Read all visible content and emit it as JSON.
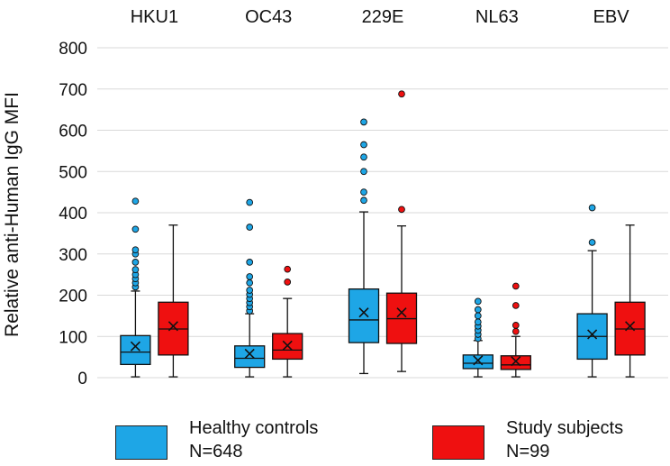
{
  "chart_data": {
    "type": "box",
    "title": "",
    "xlabel": "",
    "ylabel": "Relative anti-Human IgG MFI",
    "ylim": [
      0,
      800
    ],
    "yticks": [
      0,
      100,
      200,
      300,
      400,
      500,
      600,
      700,
      800
    ],
    "grid": true,
    "categories": [
      "HKU1",
      "OC43",
      "229E",
      "NL63",
      "EBV"
    ],
    "series": [
      {
        "name": "Healthy controls",
        "n_label": "N=648",
        "color": "#1ea6e6",
        "boxes": [
          {
            "min": 2,
            "q1": 32,
            "median": 62,
            "q3": 102,
            "max": 210,
            "mean": 76,
            "outliers": [
              220,
              230,
              240,
              250,
              262,
              280,
              300,
              310,
              360,
              428
            ]
          },
          {
            "min": 2,
            "q1": 25,
            "median": 47,
            "q3": 77,
            "max": 155,
            "mean": 58,
            "outliers": [
              162,
              172,
              182,
              192,
              202,
              212,
              230,
              245,
              280,
              365,
              425
            ]
          },
          {
            "min": 10,
            "q1": 85,
            "median": 140,
            "q3": 215,
            "max": 402,
            "mean": 158,
            "outliers": [
              430,
              450,
              500,
              535,
              565,
              620
            ]
          },
          {
            "min": 2,
            "q1": 22,
            "median": 35,
            "q3": 55,
            "max": 90,
            "mean": 42,
            "outliers": [
              95,
              105,
              115,
              125,
              135,
              150,
              165,
              185
            ]
          },
          {
            "min": 2,
            "q1": 45,
            "median": 100,
            "q3": 155,
            "max": 308,
            "mean": 105,
            "outliers": [
              328,
              412
            ]
          }
        ]
      },
      {
        "name": "Study subjects",
        "n_label": "N=99",
        "color": "#ef1010",
        "boxes": [
          {
            "min": 2,
            "q1": 55,
            "median": 118,
            "q3": 183,
            "max": 370,
            "mean": 125,
            "outliers": []
          },
          {
            "min": 2,
            "q1": 45,
            "median": 67,
            "q3": 107,
            "max": 192,
            "mean": 78,
            "outliers": [
              232,
              263
            ]
          },
          {
            "min": 15,
            "q1": 83,
            "median": 143,
            "q3": 205,
            "max": 368,
            "mean": 158,
            "outliers": [
              408,
              688
            ]
          },
          {
            "min": 2,
            "q1": 20,
            "median": 31,
            "q3": 53,
            "max": 100,
            "mean": 40,
            "outliers": [
              112,
              127,
              175,
              222
            ]
          },
          {
            "min": 2,
            "q1": 55,
            "median": 118,
            "q3": 183,
            "max": 370,
            "mean": 125,
            "outliers": []
          }
        ]
      }
    ]
  },
  "legend": [
    {
      "label": "Healthy controls",
      "n_label": "N=648",
      "color": "#1ea6e6"
    },
    {
      "label": "Study subjects",
      "n_label": "N=99",
      "color": "#ef1010"
    }
  ]
}
